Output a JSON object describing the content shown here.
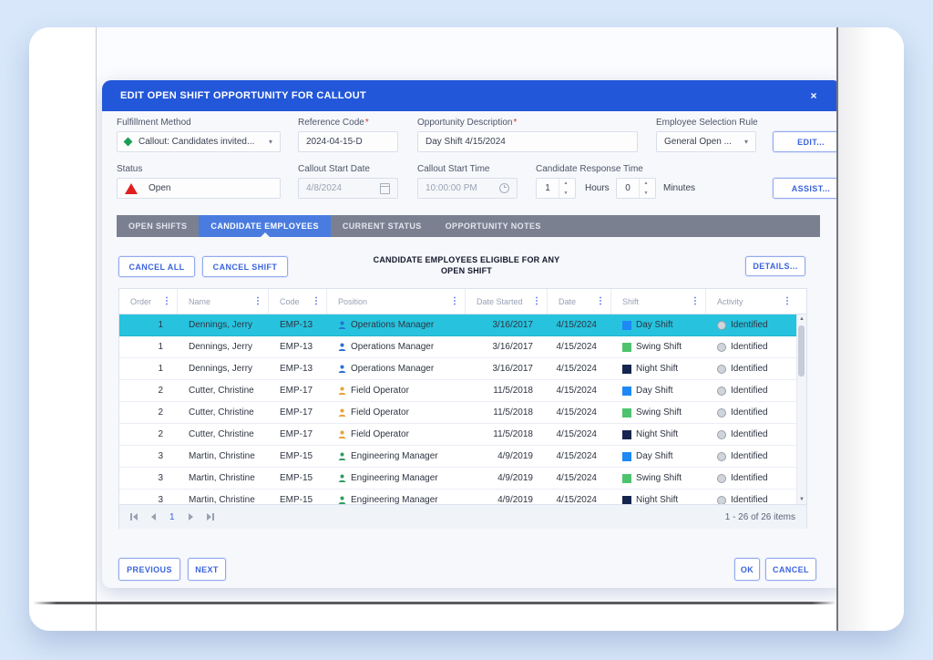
{
  "dialog": {
    "title": "EDIT OPEN SHIFT OPPORTUNITY FOR CALLOUT",
    "close_label": "×"
  },
  "form": {
    "fulfillment_method": {
      "label": "Fulfillment Method",
      "value": "Callout: Candidates invited..."
    },
    "reference_code": {
      "label": "Reference Code",
      "required_mark": "*",
      "value": "2024-04-15-D"
    },
    "opportunity_description": {
      "label": "Opportunity Description",
      "required_mark": "*",
      "value": "Day Shift 4/15/2024"
    },
    "employee_selection_rule": {
      "label": "Employee Selection Rule",
      "value": "General Open ...",
      "edit_label": "EDIT..."
    },
    "status": {
      "label": "Status",
      "value": "Open"
    },
    "callout_start_date": {
      "label": "Callout Start Date",
      "value": "4/8/2024"
    },
    "callout_start_time": {
      "label": "Callout Start Time",
      "value": "10:00:00 PM"
    },
    "candidate_response_time": {
      "label": "Candidate Response Time",
      "hours_value": "1",
      "hours_unit": "Hours",
      "minutes_value": "0",
      "minutes_unit": "Minutes"
    },
    "assist_label": "ASSIST..."
  },
  "tabs": [
    {
      "label": "OPEN SHIFTS",
      "active": false
    },
    {
      "label": "CANDIDATE EMPLOYEES",
      "active": true
    },
    {
      "label": "CURRENT STATUS",
      "active": false
    },
    {
      "label": "OPPORTUNITY NOTES",
      "active": false
    }
  ],
  "grid": {
    "toolbar": {
      "cancel_all_label": "CANCEL ALL",
      "cancel_shift_label": "CANCEL SHIFT",
      "heading_line1": "CANDIDATE EMPLOYEES ELIGIBLE FOR ANY",
      "heading_line2": "OPEN SHIFT",
      "details_label": "DETAILS..."
    },
    "columns": [
      "Order",
      "Name",
      "Code",
      "Position",
      "Date Started",
      "Date",
      "Shift",
      "Activity"
    ],
    "rows": [
      {
        "order": "1",
        "name": "Dennings, Jerry",
        "code": "EMP-13",
        "position": "Operations Manager",
        "position_color": "#2a6fd8",
        "date_started": "3/16/2017",
        "date": "4/15/2024",
        "shift": "Day Shift",
        "shift_color": "#1e88f5",
        "activity": "Identified",
        "selected": true
      },
      {
        "order": "1",
        "name": "Dennings, Jerry",
        "code": "EMP-13",
        "position": "Operations Manager",
        "position_color": "#2a6fd8",
        "date_started": "3/16/2017",
        "date": "4/15/2024",
        "shift": "Swing Shift",
        "shift_color": "#4dc36e",
        "activity": "Identified",
        "selected": false
      },
      {
        "order": "1",
        "name": "Dennings, Jerry",
        "code": "EMP-13",
        "position": "Operations Manager",
        "position_color": "#2a6fd8",
        "date_started": "3/16/2017",
        "date": "4/15/2024",
        "shift": "Night Shift",
        "shift_color": "#16254f",
        "activity": "Identified",
        "selected": false
      },
      {
        "order": "2",
        "name": "Cutter, Christine",
        "code": "EMP-17",
        "position": "Field Operator",
        "position_color": "#e8a13a",
        "date_started": "11/5/2018",
        "date": "4/15/2024",
        "shift": "Day Shift",
        "shift_color": "#1e88f5",
        "activity": "Identified",
        "selected": false
      },
      {
        "order": "2",
        "name": "Cutter, Christine",
        "code": "EMP-17",
        "position": "Field Operator",
        "position_color": "#e8a13a",
        "date_started": "11/5/2018",
        "date": "4/15/2024",
        "shift": "Swing Shift",
        "shift_color": "#4dc36e",
        "activity": "Identified",
        "selected": false
      },
      {
        "order": "2",
        "name": "Cutter, Christine",
        "code": "EMP-17",
        "position": "Field Operator",
        "position_color": "#e8a13a",
        "date_started": "11/5/2018",
        "date": "4/15/2024",
        "shift": "Night Shift",
        "shift_color": "#16254f",
        "activity": "Identified",
        "selected": false
      },
      {
        "order": "3",
        "name": "Martin, Christine",
        "code": "EMP-15",
        "position": "Engineering Manager",
        "position_color": "#2f9e5f",
        "date_started": "4/9/2019",
        "date": "4/15/2024",
        "shift": "Day Shift",
        "shift_color": "#1e88f5",
        "activity": "Identified",
        "selected": false
      },
      {
        "order": "3",
        "name": "Martin, Christine",
        "code": "EMP-15",
        "position": "Engineering Manager",
        "position_color": "#2f9e5f",
        "date_started": "4/9/2019",
        "date": "4/15/2024",
        "shift": "Swing Shift",
        "shift_color": "#4dc36e",
        "activity": "Identified",
        "selected": false
      },
      {
        "order": "3",
        "name": "Martin, Christine",
        "code": "EMP-15",
        "position": "Engineering Manager",
        "position_color": "#2f9e5f",
        "date_started": "4/9/2019",
        "date": "4/15/2024",
        "shift": "Night Shift",
        "shift_color": "#16254f",
        "activity": "Identified",
        "selected": false
      }
    ],
    "pager": {
      "current_page": "1",
      "info": "1 - 26 of 26 items"
    }
  },
  "footer": {
    "previous_label": "PREVIOUS",
    "next_label": "NEXT",
    "ok_label": "OK",
    "cancel_label": "CANCEL"
  },
  "colors": {
    "header_blue": "#2357d9",
    "active_tab_blue": "#4a7ce0",
    "tab_bar_gray": "#7a8090",
    "selected_row_cyan": "#27c3de",
    "status_red": "#e01f1f",
    "fulfillment_green": "#1d9e57"
  }
}
